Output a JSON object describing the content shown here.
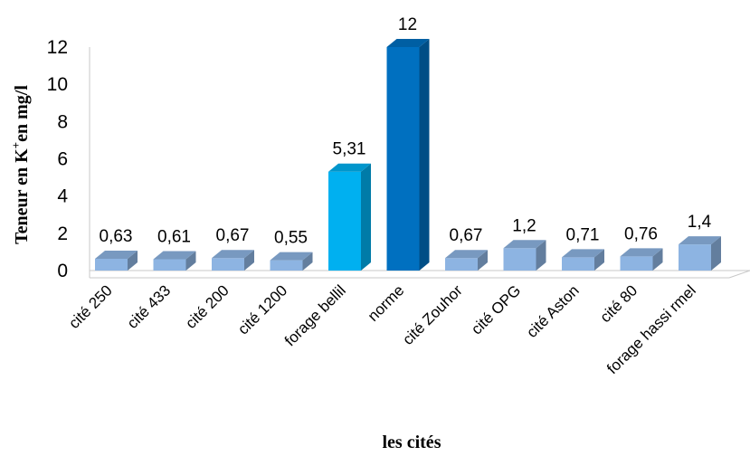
{
  "chart_data": {
    "type": "bar",
    "categories": [
      "cité 250",
      "cité 433",
      "cité 200",
      "cité 1200",
      "forage bellil",
      "norme",
      "cité Zouhor",
      "cité OPG",
      "cité Aston",
      "cité 80",
      "forage hassi rmel"
    ],
    "values": [
      0.63,
      0.61,
      0.67,
      0.55,
      5.31,
      12,
      0.67,
      1.2,
      0.71,
      0.76,
      1.4
    ],
    "data_labels": [
      "0,63",
      "0,61",
      "0,67",
      "0,55",
      "5,31",
      "12",
      "0,67",
      "1,2",
      "0,71",
      "0,76",
      "1,4"
    ],
    "xlabel": "les cités",
    "ylabel_parts": {
      "before": "Teneur en K",
      "superscript": "+",
      "after": "en mg/l"
    },
    "ylim": [
      0,
      12
    ],
    "yticks": [
      "0",
      "2",
      "4",
      "6",
      "8",
      "10",
      "12"
    ],
    "style": "3d",
    "grid": false,
    "legend": "none",
    "colors": {
      "default": "#8db4e2",
      "forage bellil": "#00b0f0",
      "norme": "#0070c0"
    }
  }
}
